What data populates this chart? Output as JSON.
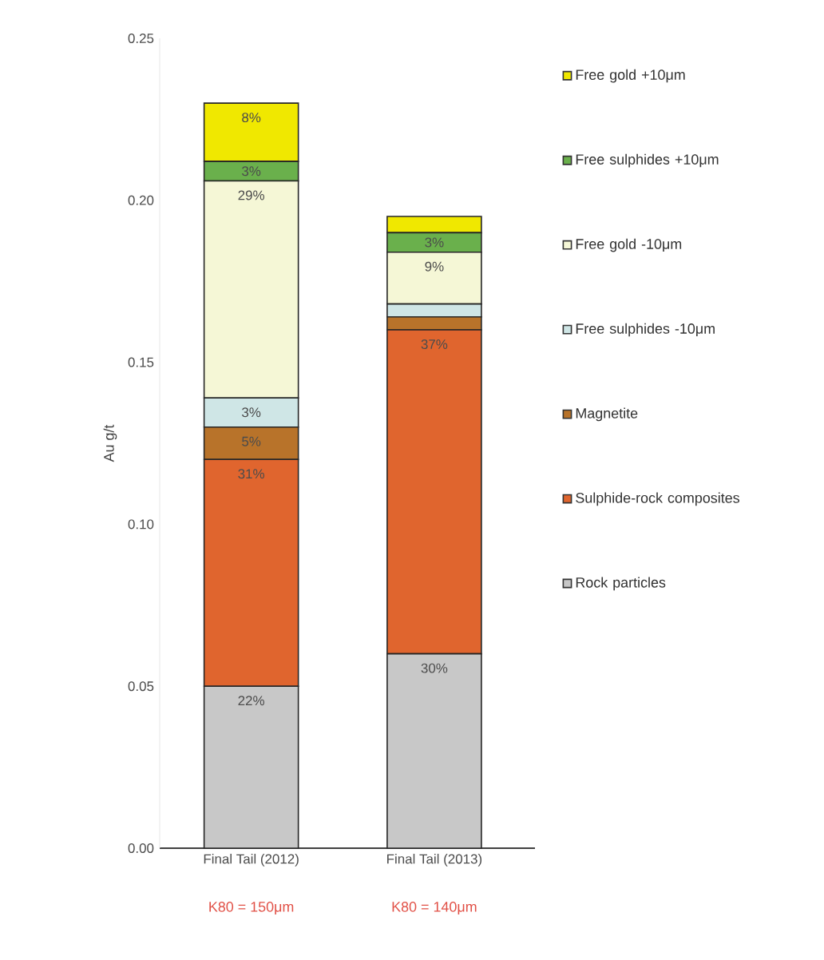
{
  "chart_data": {
    "type": "bar",
    "stacked": true,
    "ylabel": "Au g/t",
    "categories": [
      "Final Tail (2012)",
      "Final Tail (2013)"
    ],
    "annotations": [
      "K80 = 150μm",
      "K80 = 140μm",
      {
        "text": "22%",
        "x": "Final Tail (2012)",
        "y": 0.05
      },
      {
        "text": "31%",
        "x": "Final Tail (2012)",
        "y": 0.12
      },
      {
        "text": "5%",
        "x": "Final Tail (2012)",
        "y": 0.13
      },
      {
        "text": "3%",
        "x": "Final Tail (2012)",
        "y": 0.139
      },
      {
        "text": "29%",
        "x": "Final Tail (2012)",
        "y": 0.206
      },
      {
        "text": "3%",
        "x": "Final Tail (2012)",
        "y": 0.212
      },
      {
        "text": "8%",
        "x": "Final Tail (2012)",
        "y": 0.23
      },
      {
        "text": "30%",
        "x": "Final Tail (2013)",
        "y": 0.06
      },
      {
        "text": "37%",
        "x": "Final Tail (2013)",
        "y": 0.16
      },
      {
        "text": "9%",
        "x": "Final Tail (2013)",
        "y": 0.184
      },
      {
        "text": "3%",
        "x": "Final Tail (2013)",
        "y": 0.19
      }
    ],
    "ylim": [
      0,
      0.25
    ],
    "yticks": [
      {
        "value": 0,
        "label": "0.00"
      },
      {
        "value": 0.05,
        "label": "0.05"
      },
      {
        "value": 0.1,
        "label": "0.10"
      },
      {
        "value": 0.15,
        "label": "0.15"
      },
      {
        "value": 0.2,
        "label": "0.20"
      },
      {
        "value": 0.25,
        "label": "0.25"
      }
    ],
    "legend": "right",
    "grid": false,
    "series": [
      {
        "name": "Rock particles",
        "color": "#c8c8c8",
        "values": [
          0.05,
          0.06
        ]
      },
      {
        "name": "Sulphide-rock composites",
        "color": "#e0652e",
        "values": [
          0.07,
          0.1
        ]
      },
      {
        "name": "Magnetite",
        "color": "#b8732a",
        "values": [
          0.01,
          0.004
        ]
      },
      {
        "name": "Free sulphides -10μm",
        "color": "#cfe6e6",
        "values": [
          0.009,
          0.004
        ]
      },
      {
        "name": "Free gold -10μm",
        "color": "#f5f7d6",
        "values": [
          0.067,
          0.016
        ]
      },
      {
        "name": "Free sulphides +10μm",
        "color": "#6ab04c",
        "values": [
          0.006,
          0.006
        ]
      },
      {
        "name": "Free gold +10μm",
        "color": "#f0e800",
        "values": [
          0.018,
          0.005
        ]
      }
    ]
  }
}
